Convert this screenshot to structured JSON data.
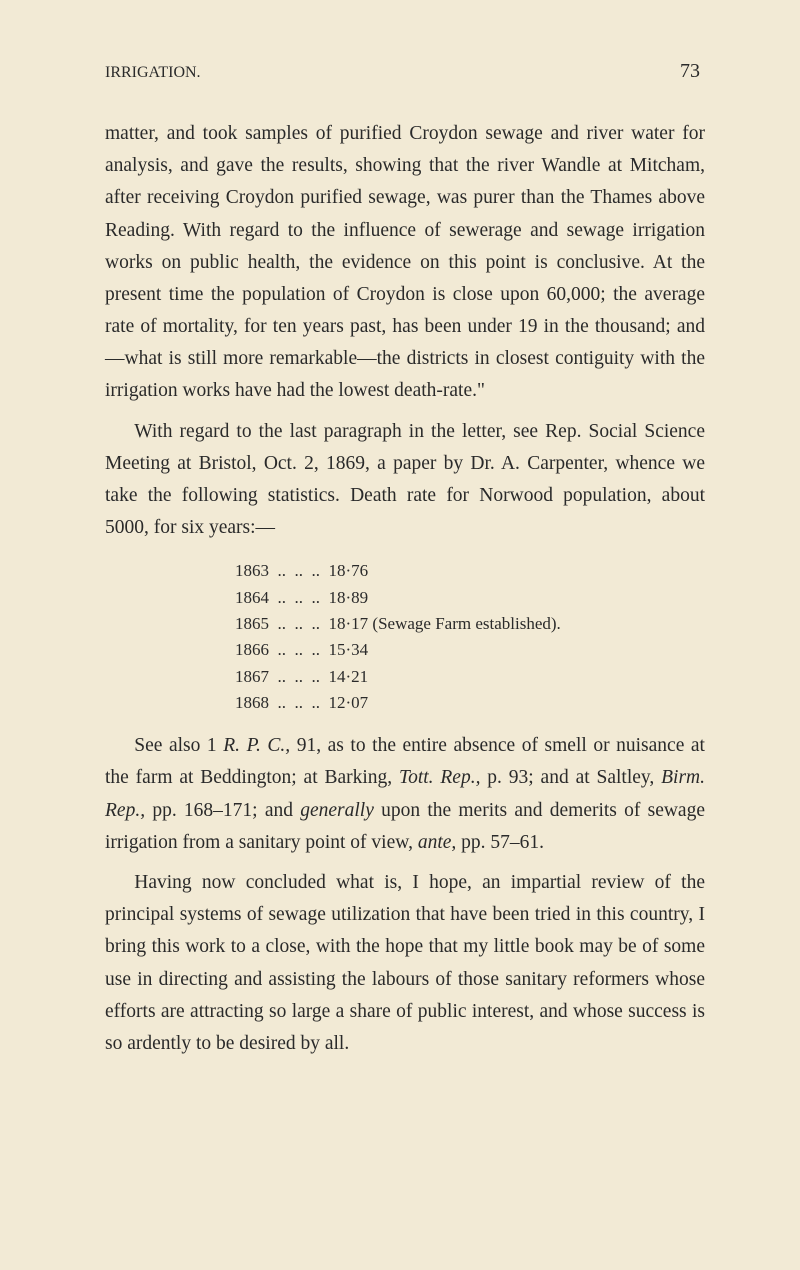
{
  "header": {
    "title": "IRRIGATION.",
    "page_number": "73"
  },
  "paragraphs": {
    "p1": "matter, and took samples of purified Croydon sewage and river water for analysis, and gave the results, showing that the river Wandle at Mitcham, after receiving Croydon purified sewage, was purer than the Thames above Reading. With regard to the influence of sewerage and sewage irriga­tion works on public health, the evidence on this point is conclusive. At the present time the population of Croydon is close upon 60,000; the average rate of mortality, for ten years past, has been under 19 in the thousand; and—what is still more remarkable—the districts in closest contiguity with the irrigation works have had the lowest death-rate.\"",
    "p2": "With regard to the last paragraph in the letter, see Rep. Social Science Meeting at Bristol, Oct. 2, 1869, a paper by Dr. A. Carpenter, whence we take the following statistics. Death rate for Norwood population, about 5000, for six years:—"
  },
  "stats": {
    "row1": "1863  ..  ..  ..  18·76",
    "row2": "1864  ..  ..  ..  18·89",
    "row3": "1865  ..  ..  ..  18·17 (Sewage Farm established).",
    "row4": "1866  ..  ..  ..  15·34",
    "row5": "1867  ..  ..  ..  14·21",
    "row6": "1868  ..  ..  ..  12·07"
  },
  "p3_parts": {
    "t1": "See also 1 ",
    "i1": "R. P. C.,",
    "t2": " 91, as to the entire absence of smell or nuisance at the farm at Beddington; at Barking, ",
    "i2": "Tott. Rep.,",
    "t3": " p. 93; and at Saltley, ",
    "i3": "Birm. Rep.,",
    "t4": " pp. 168–171; and ",
    "i4": "generally",
    "t5": " upon the merits and demerits of sewage irrigation from a sanitary point of view, ",
    "i5": "ante,",
    "t6": " pp. 57–61."
  },
  "p4": "Having now concluded what is, I hope, an impartial review of the principal systems of sewage utilization that have been tried in this country, I bring this work to a close, with the hope that my little book may be of some use in directing and assisting the labours of those sanitary reformers whose efforts are attracting so large a share of public interest, and whose success is so ardently to be desired by all."
}
